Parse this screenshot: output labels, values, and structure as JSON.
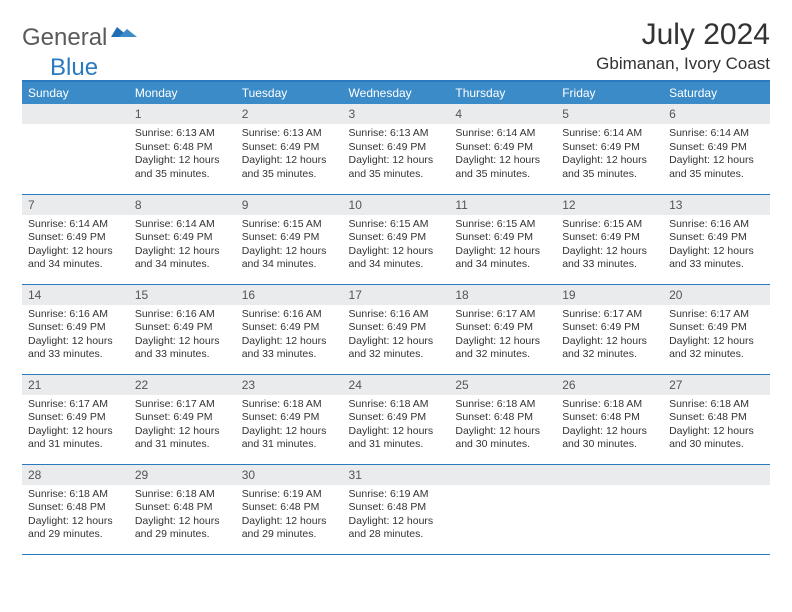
{
  "logo": {
    "part1": "General",
    "part2": "Blue"
  },
  "title": "July 2024",
  "location": "Gbimanan, Ivory Coast",
  "colors": {
    "header_bg": "#3b8bc9",
    "border": "#2a7abf",
    "daynum_bg": "#e9ebec",
    "text": "#333333",
    "logo_gray": "#5a5a5a",
    "logo_blue": "#2a7abf"
  },
  "day_headers": [
    "Sunday",
    "Monday",
    "Tuesday",
    "Wednesday",
    "Thursday",
    "Friday",
    "Saturday"
  ],
  "weeks": [
    [
      {
        "n": "",
        "sr": "",
        "ss": "",
        "dl": ""
      },
      {
        "n": "1",
        "sr": "6:13 AM",
        "ss": "6:48 PM",
        "dl": "12 hours and 35 minutes."
      },
      {
        "n": "2",
        "sr": "6:13 AM",
        "ss": "6:49 PM",
        "dl": "12 hours and 35 minutes."
      },
      {
        "n": "3",
        "sr": "6:13 AM",
        "ss": "6:49 PM",
        "dl": "12 hours and 35 minutes."
      },
      {
        "n": "4",
        "sr": "6:14 AM",
        "ss": "6:49 PM",
        "dl": "12 hours and 35 minutes."
      },
      {
        "n": "5",
        "sr": "6:14 AM",
        "ss": "6:49 PM",
        "dl": "12 hours and 35 minutes."
      },
      {
        "n": "6",
        "sr": "6:14 AM",
        "ss": "6:49 PM",
        "dl": "12 hours and 35 minutes."
      }
    ],
    [
      {
        "n": "7",
        "sr": "6:14 AM",
        "ss": "6:49 PM",
        "dl": "12 hours and 34 minutes."
      },
      {
        "n": "8",
        "sr": "6:14 AM",
        "ss": "6:49 PM",
        "dl": "12 hours and 34 minutes."
      },
      {
        "n": "9",
        "sr": "6:15 AM",
        "ss": "6:49 PM",
        "dl": "12 hours and 34 minutes."
      },
      {
        "n": "10",
        "sr": "6:15 AM",
        "ss": "6:49 PM",
        "dl": "12 hours and 34 minutes."
      },
      {
        "n": "11",
        "sr": "6:15 AM",
        "ss": "6:49 PM",
        "dl": "12 hours and 34 minutes."
      },
      {
        "n": "12",
        "sr": "6:15 AM",
        "ss": "6:49 PM",
        "dl": "12 hours and 33 minutes."
      },
      {
        "n": "13",
        "sr": "6:16 AM",
        "ss": "6:49 PM",
        "dl": "12 hours and 33 minutes."
      }
    ],
    [
      {
        "n": "14",
        "sr": "6:16 AM",
        "ss": "6:49 PM",
        "dl": "12 hours and 33 minutes."
      },
      {
        "n": "15",
        "sr": "6:16 AM",
        "ss": "6:49 PM",
        "dl": "12 hours and 33 minutes."
      },
      {
        "n": "16",
        "sr": "6:16 AM",
        "ss": "6:49 PM",
        "dl": "12 hours and 33 minutes."
      },
      {
        "n": "17",
        "sr": "6:16 AM",
        "ss": "6:49 PM",
        "dl": "12 hours and 32 minutes."
      },
      {
        "n": "18",
        "sr": "6:17 AM",
        "ss": "6:49 PM",
        "dl": "12 hours and 32 minutes."
      },
      {
        "n": "19",
        "sr": "6:17 AM",
        "ss": "6:49 PM",
        "dl": "12 hours and 32 minutes."
      },
      {
        "n": "20",
        "sr": "6:17 AM",
        "ss": "6:49 PM",
        "dl": "12 hours and 32 minutes."
      }
    ],
    [
      {
        "n": "21",
        "sr": "6:17 AM",
        "ss": "6:49 PM",
        "dl": "12 hours and 31 minutes."
      },
      {
        "n": "22",
        "sr": "6:17 AM",
        "ss": "6:49 PM",
        "dl": "12 hours and 31 minutes."
      },
      {
        "n": "23",
        "sr": "6:18 AM",
        "ss": "6:49 PM",
        "dl": "12 hours and 31 minutes."
      },
      {
        "n": "24",
        "sr": "6:18 AM",
        "ss": "6:49 PM",
        "dl": "12 hours and 31 minutes."
      },
      {
        "n": "25",
        "sr": "6:18 AM",
        "ss": "6:48 PM",
        "dl": "12 hours and 30 minutes."
      },
      {
        "n": "26",
        "sr": "6:18 AM",
        "ss": "6:48 PM",
        "dl": "12 hours and 30 minutes."
      },
      {
        "n": "27",
        "sr": "6:18 AM",
        "ss": "6:48 PM",
        "dl": "12 hours and 30 minutes."
      }
    ],
    [
      {
        "n": "28",
        "sr": "6:18 AM",
        "ss": "6:48 PM",
        "dl": "12 hours and 29 minutes."
      },
      {
        "n": "29",
        "sr": "6:18 AM",
        "ss": "6:48 PM",
        "dl": "12 hours and 29 minutes."
      },
      {
        "n": "30",
        "sr": "6:19 AM",
        "ss": "6:48 PM",
        "dl": "12 hours and 29 minutes."
      },
      {
        "n": "31",
        "sr": "6:19 AM",
        "ss": "6:48 PM",
        "dl": "12 hours and 28 minutes."
      },
      {
        "n": "",
        "sr": "",
        "ss": "",
        "dl": ""
      },
      {
        "n": "",
        "sr": "",
        "ss": "",
        "dl": ""
      },
      {
        "n": "",
        "sr": "",
        "ss": "",
        "dl": ""
      }
    ]
  ],
  "labels": {
    "sunrise": "Sunrise: ",
    "sunset": "Sunset: ",
    "daylight": "Daylight: "
  }
}
